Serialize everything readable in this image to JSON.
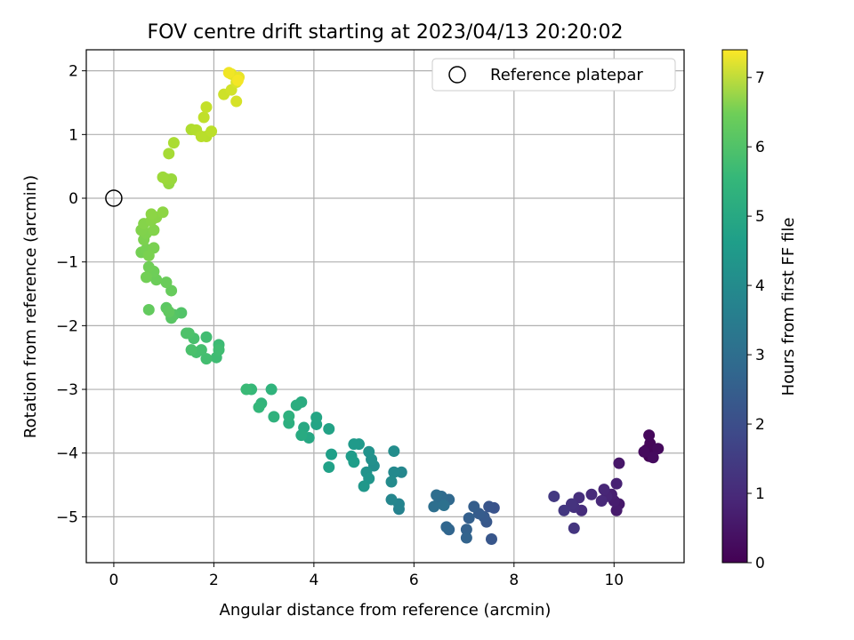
{
  "chart_data": {
    "type": "scatter",
    "title": "FOV centre drift starting at 2023/04/13 20:20:02",
    "xlabel": "Angular distance from reference (arcmin)",
    "ylabel": "Rotation from reference (arcmin)",
    "xlim": [
      -0.55,
      11.4
    ],
    "ylim": [
      -5.72,
      2.33
    ],
    "xticks": [
      0,
      2,
      4,
      6,
      8,
      10
    ],
    "yticks": [
      -5,
      -4,
      -3,
      -2,
      -1,
      0,
      1,
      2
    ],
    "grid": true,
    "legend": {
      "position": "top-right",
      "entries": [
        "Reference platepar"
      ]
    },
    "reference_point": {
      "x": 0,
      "y": 0,
      "marker": "open-circle"
    },
    "colorbar": {
      "label": "Hours from first FF file",
      "range": [
        0,
        7.4
      ],
      "ticks": [
        0,
        1,
        2,
        3,
        4,
        5,
        6,
        7
      ],
      "colormap": "viridis"
    },
    "series": [
      {
        "color_by": "hours",
        "points": [
          {
            "x": 10.7,
            "y": -4.05,
            "c": 0.02
          },
          {
            "x": 10.75,
            "y": -4.0,
            "c": 0.05
          },
          {
            "x": 10.65,
            "y": -3.95,
            "c": 0.08
          },
          {
            "x": 10.8,
            "y": -3.95,
            "c": 0.1
          },
          {
            "x": 10.72,
            "y": -3.85,
            "c": 0.12
          },
          {
            "x": 10.7,
            "y": -3.72,
            "c": 0.15
          },
          {
            "x": 10.88,
            "y": -3.93,
            "c": 0.18
          },
          {
            "x": 10.6,
            "y": -3.98,
            "c": 0.2
          },
          {
            "x": 10.78,
            "y": -4.07,
            "c": 0.22
          },
          {
            "x": 10.1,
            "y": -4.16,
            "c": 0.45
          },
          {
            "x": 10.1,
            "y": -4.8,
            "c": 0.5
          },
          {
            "x": 10.05,
            "y": -4.9,
            "c": 0.55
          },
          {
            "x": 10.0,
            "y": -4.75,
            "c": 0.6
          },
          {
            "x": 9.95,
            "y": -4.65,
            "c": 0.65
          },
          {
            "x": 10.05,
            "y": -4.48,
            "c": 0.7
          },
          {
            "x": 9.85,
            "y": -4.68,
            "c": 0.75
          },
          {
            "x": 9.8,
            "y": -4.57,
            "c": 0.8
          },
          {
            "x": 9.75,
            "y": -4.75,
            "c": 0.85
          },
          {
            "x": 9.55,
            "y": -4.65,
            "c": 0.9
          },
          {
            "x": 9.35,
            "y": -4.9,
            "c": 0.95
          },
          {
            "x": 9.3,
            "y": -4.7,
            "c": 1.0
          },
          {
            "x": 9.2,
            "y": -4.85,
            "c": 1.05
          },
          {
            "x": 9.15,
            "y": -4.8,
            "c": 1.1
          },
          {
            "x": 9.2,
            "y": -5.18,
            "c": 1.15
          },
          {
            "x": 9.0,
            "y": -4.9,
            "c": 1.2
          },
          {
            "x": 8.8,
            "y": -4.68,
            "c": 1.25
          },
          {
            "x": 7.6,
            "y": -4.86,
            "c": 1.9
          },
          {
            "x": 7.5,
            "y": -4.84,
            "c": 1.95
          },
          {
            "x": 7.55,
            "y": -5.35,
            "c": 2.0
          },
          {
            "x": 7.45,
            "y": -5.08,
            "c": 2.05
          },
          {
            "x": 7.4,
            "y": -5.0,
            "c": 2.1
          },
          {
            "x": 7.3,
            "y": -4.95,
            "c": 2.15
          },
          {
            "x": 7.2,
            "y": -4.84,
            "c": 2.2
          },
          {
            "x": 7.1,
            "y": -5.02,
            "c": 2.25
          },
          {
            "x": 7.05,
            "y": -5.2,
            "c": 2.3
          },
          {
            "x": 7.05,
            "y": -5.33,
            "c": 2.35
          },
          {
            "x": 6.7,
            "y": -5.2,
            "c": 2.4
          },
          {
            "x": 6.65,
            "y": -5.16,
            "c": 2.45
          },
          {
            "x": 6.7,
            "y": -4.73,
            "c": 2.5
          },
          {
            "x": 6.55,
            "y": -4.68,
            "c": 2.55
          },
          {
            "x": 6.5,
            "y": -4.78,
            "c": 2.6
          },
          {
            "x": 6.45,
            "y": -4.66,
            "c": 2.65
          },
          {
            "x": 6.4,
            "y": -4.84,
            "c": 2.7
          },
          {
            "x": 6.6,
            "y": -4.82,
            "c": 2.75
          },
          {
            "x": 5.7,
            "y": -4.88,
            "c": 3.3
          },
          {
            "x": 5.7,
            "y": -4.8,
            "c": 3.35
          },
          {
            "x": 5.55,
            "y": -4.73,
            "c": 3.4
          },
          {
            "x": 5.75,
            "y": -4.3,
            "c": 3.45
          },
          {
            "x": 5.6,
            "y": -4.3,
            "c": 3.5
          },
          {
            "x": 5.55,
            "y": -4.45,
            "c": 3.55
          },
          {
            "x": 5.6,
            "y": -3.97,
            "c": 3.6
          },
          {
            "x": 5.2,
            "y": -4.2,
            "c": 3.65
          },
          {
            "x": 5.15,
            "y": -4.1,
            "c": 3.7
          },
          {
            "x": 5.1,
            "y": -3.98,
            "c": 3.75
          },
          {
            "x": 5.05,
            "y": -4.3,
            "c": 3.8
          },
          {
            "x": 5.1,
            "y": -4.4,
            "c": 3.85
          },
          {
            "x": 5.0,
            "y": -4.52,
            "c": 3.9
          },
          {
            "x": 4.9,
            "y": -3.86,
            "c": 3.95
          },
          {
            "x": 4.8,
            "y": -3.86,
            "c": 4.0
          },
          {
            "x": 4.75,
            "y": -4.05,
            "c": 4.05
          },
          {
            "x": 4.8,
            "y": -4.14,
            "c": 4.1
          },
          {
            "x": 4.35,
            "y": -4.02,
            "c": 4.15
          },
          {
            "x": 4.3,
            "y": -4.22,
            "c": 4.2
          },
          {
            "x": 4.3,
            "y": -3.62,
            "c": 4.25
          },
          {
            "x": 4.05,
            "y": -3.55,
            "c": 4.3
          },
          {
            "x": 4.05,
            "y": -3.44,
            "c": 4.35
          },
          {
            "x": 3.9,
            "y": -3.76,
            "c": 4.4
          },
          {
            "x": 3.8,
            "y": -3.6,
            "c": 4.45
          },
          {
            "x": 3.75,
            "y": -3.72,
            "c": 4.5
          },
          {
            "x": 3.75,
            "y": -3.2,
            "c": 4.55
          },
          {
            "x": 3.65,
            "y": -3.25,
            "c": 4.6
          },
          {
            "x": 3.5,
            "y": -3.53,
            "c": 4.65
          },
          {
            "x": 3.5,
            "y": -3.42,
            "c": 4.7
          },
          {
            "x": 3.2,
            "y": -3.43,
            "c": 4.75
          },
          {
            "x": 3.15,
            "y": -3.0,
            "c": 4.8
          },
          {
            "x": 2.95,
            "y": -3.22,
            "c": 4.85
          },
          {
            "x": 2.9,
            "y": -3.28,
            "c": 4.9
          },
          {
            "x": 2.75,
            "y": -3.0,
            "c": 4.95
          },
          {
            "x": 2.65,
            "y": -3.0,
            "c": 5.0
          },
          {
            "x": 2.1,
            "y": -2.3,
            "c": 5.05
          },
          {
            "x": 2.05,
            "y": -2.5,
            "c": 5.08
          },
          {
            "x": 2.1,
            "y": -2.38,
            "c": 5.1
          },
          {
            "x": 1.85,
            "y": -2.18,
            "c": 5.12
          },
          {
            "x": 1.85,
            "y": -2.52,
            "c": 5.15
          },
          {
            "x": 1.75,
            "y": -2.38,
            "c": 5.18
          },
          {
            "x": 1.65,
            "y": -2.42,
            "c": 5.2
          },
          {
            "x": 1.6,
            "y": -2.2,
            "c": 5.22
          },
          {
            "x": 1.55,
            "y": -2.38,
            "c": 5.25
          },
          {
            "x": 1.5,
            "y": -2.12,
            "c": 5.28
          },
          {
            "x": 1.45,
            "y": -2.12,
            "c": 5.3
          },
          {
            "x": 1.35,
            "y": -1.8,
            "c": 5.35
          },
          {
            "x": 1.2,
            "y": -1.83,
            "c": 5.4
          },
          {
            "x": 1.15,
            "y": -1.88,
            "c": 5.45
          },
          {
            "x": 1.05,
            "y": -1.72,
            "c": 5.5
          },
          {
            "x": 1.1,
            "y": -1.78,
            "c": 5.55
          },
          {
            "x": 0.7,
            "y": -1.75,
            "c": 5.6
          },
          {
            "x": 1.15,
            "y": -1.45,
            "c": 5.65
          },
          {
            "x": 1.05,
            "y": -1.32,
            "c": 5.7
          },
          {
            "x": 0.85,
            "y": -1.28,
            "c": 5.72
          },
          {
            "x": 0.8,
            "y": -1.15,
            "c": 5.75
          },
          {
            "x": 0.7,
            "y": -1.08,
            "c": 5.78
          },
          {
            "x": 0.65,
            "y": -1.24,
            "c": 5.8
          },
          {
            "x": 0.55,
            "y": -0.85,
            "c": 5.82
          },
          {
            "x": 0.65,
            "y": -0.8,
            "c": 5.85
          },
          {
            "x": 0.8,
            "y": -0.78,
            "c": 5.88
          },
          {
            "x": 0.7,
            "y": -0.9,
            "c": 5.9
          },
          {
            "x": 0.6,
            "y": -0.65,
            "c": 5.92
          },
          {
            "x": 0.65,
            "y": -0.55,
            "c": 5.95
          },
          {
            "x": 0.55,
            "y": -0.5,
            "c": 5.98
          },
          {
            "x": 0.8,
            "y": -0.5,
            "c": 6.0
          },
          {
            "x": 0.6,
            "y": -0.4,
            "c": 6.02
          },
          {
            "x": 0.75,
            "y": -0.35,
            "c": 6.05
          },
          {
            "x": 0.85,
            "y": -0.3,
            "c": 6.08
          },
          {
            "x": 0.75,
            "y": -0.25,
            "c": 6.1
          },
          {
            "x": 0.98,
            "y": -0.22,
            "c": 6.12
          },
          {
            "x": 1.1,
            "y": 0.23,
            "c": 6.2
          },
          {
            "x": 1.15,
            "y": 0.3,
            "c": 6.25
          },
          {
            "x": 1.05,
            "y": 0.3,
            "c": 6.28
          },
          {
            "x": 0.98,
            "y": 0.33,
            "c": 6.3
          },
          {
            "x": 1.1,
            "y": 0.7,
            "c": 6.4
          },
          {
            "x": 1.2,
            "y": 0.87,
            "c": 6.45
          },
          {
            "x": 1.55,
            "y": 1.08,
            "c": 6.5
          },
          {
            "x": 1.65,
            "y": 1.07,
            "c": 6.55
          },
          {
            "x": 1.85,
            "y": 0.97,
            "c": 6.6
          },
          {
            "x": 1.75,
            "y": 0.97,
            "c": 6.62
          },
          {
            "x": 1.95,
            "y": 1.05,
            "c": 6.65
          },
          {
            "x": 1.8,
            "y": 1.27,
            "c": 6.7
          },
          {
            "x": 1.85,
            "y": 1.43,
            "c": 6.75
          },
          {
            "x": 2.2,
            "y": 1.63,
            "c": 6.85
          },
          {
            "x": 2.35,
            "y": 1.7,
            "c": 6.9
          },
          {
            "x": 2.45,
            "y": 1.52,
            "c": 6.95
          },
          {
            "x": 2.45,
            "y": 1.82,
            "c": 7.0
          },
          {
            "x": 2.45,
            "y": 1.88,
            "c": 7.05
          },
          {
            "x": 2.35,
            "y": 1.95,
            "c": 7.1
          },
          {
            "x": 2.5,
            "y": 1.9,
            "c": 7.15
          },
          {
            "x": 2.3,
            "y": 1.97,
            "c": 7.25
          },
          {
            "x": 2.48,
            "y": 1.85,
            "c": 7.3
          }
        ]
      }
    ]
  }
}
